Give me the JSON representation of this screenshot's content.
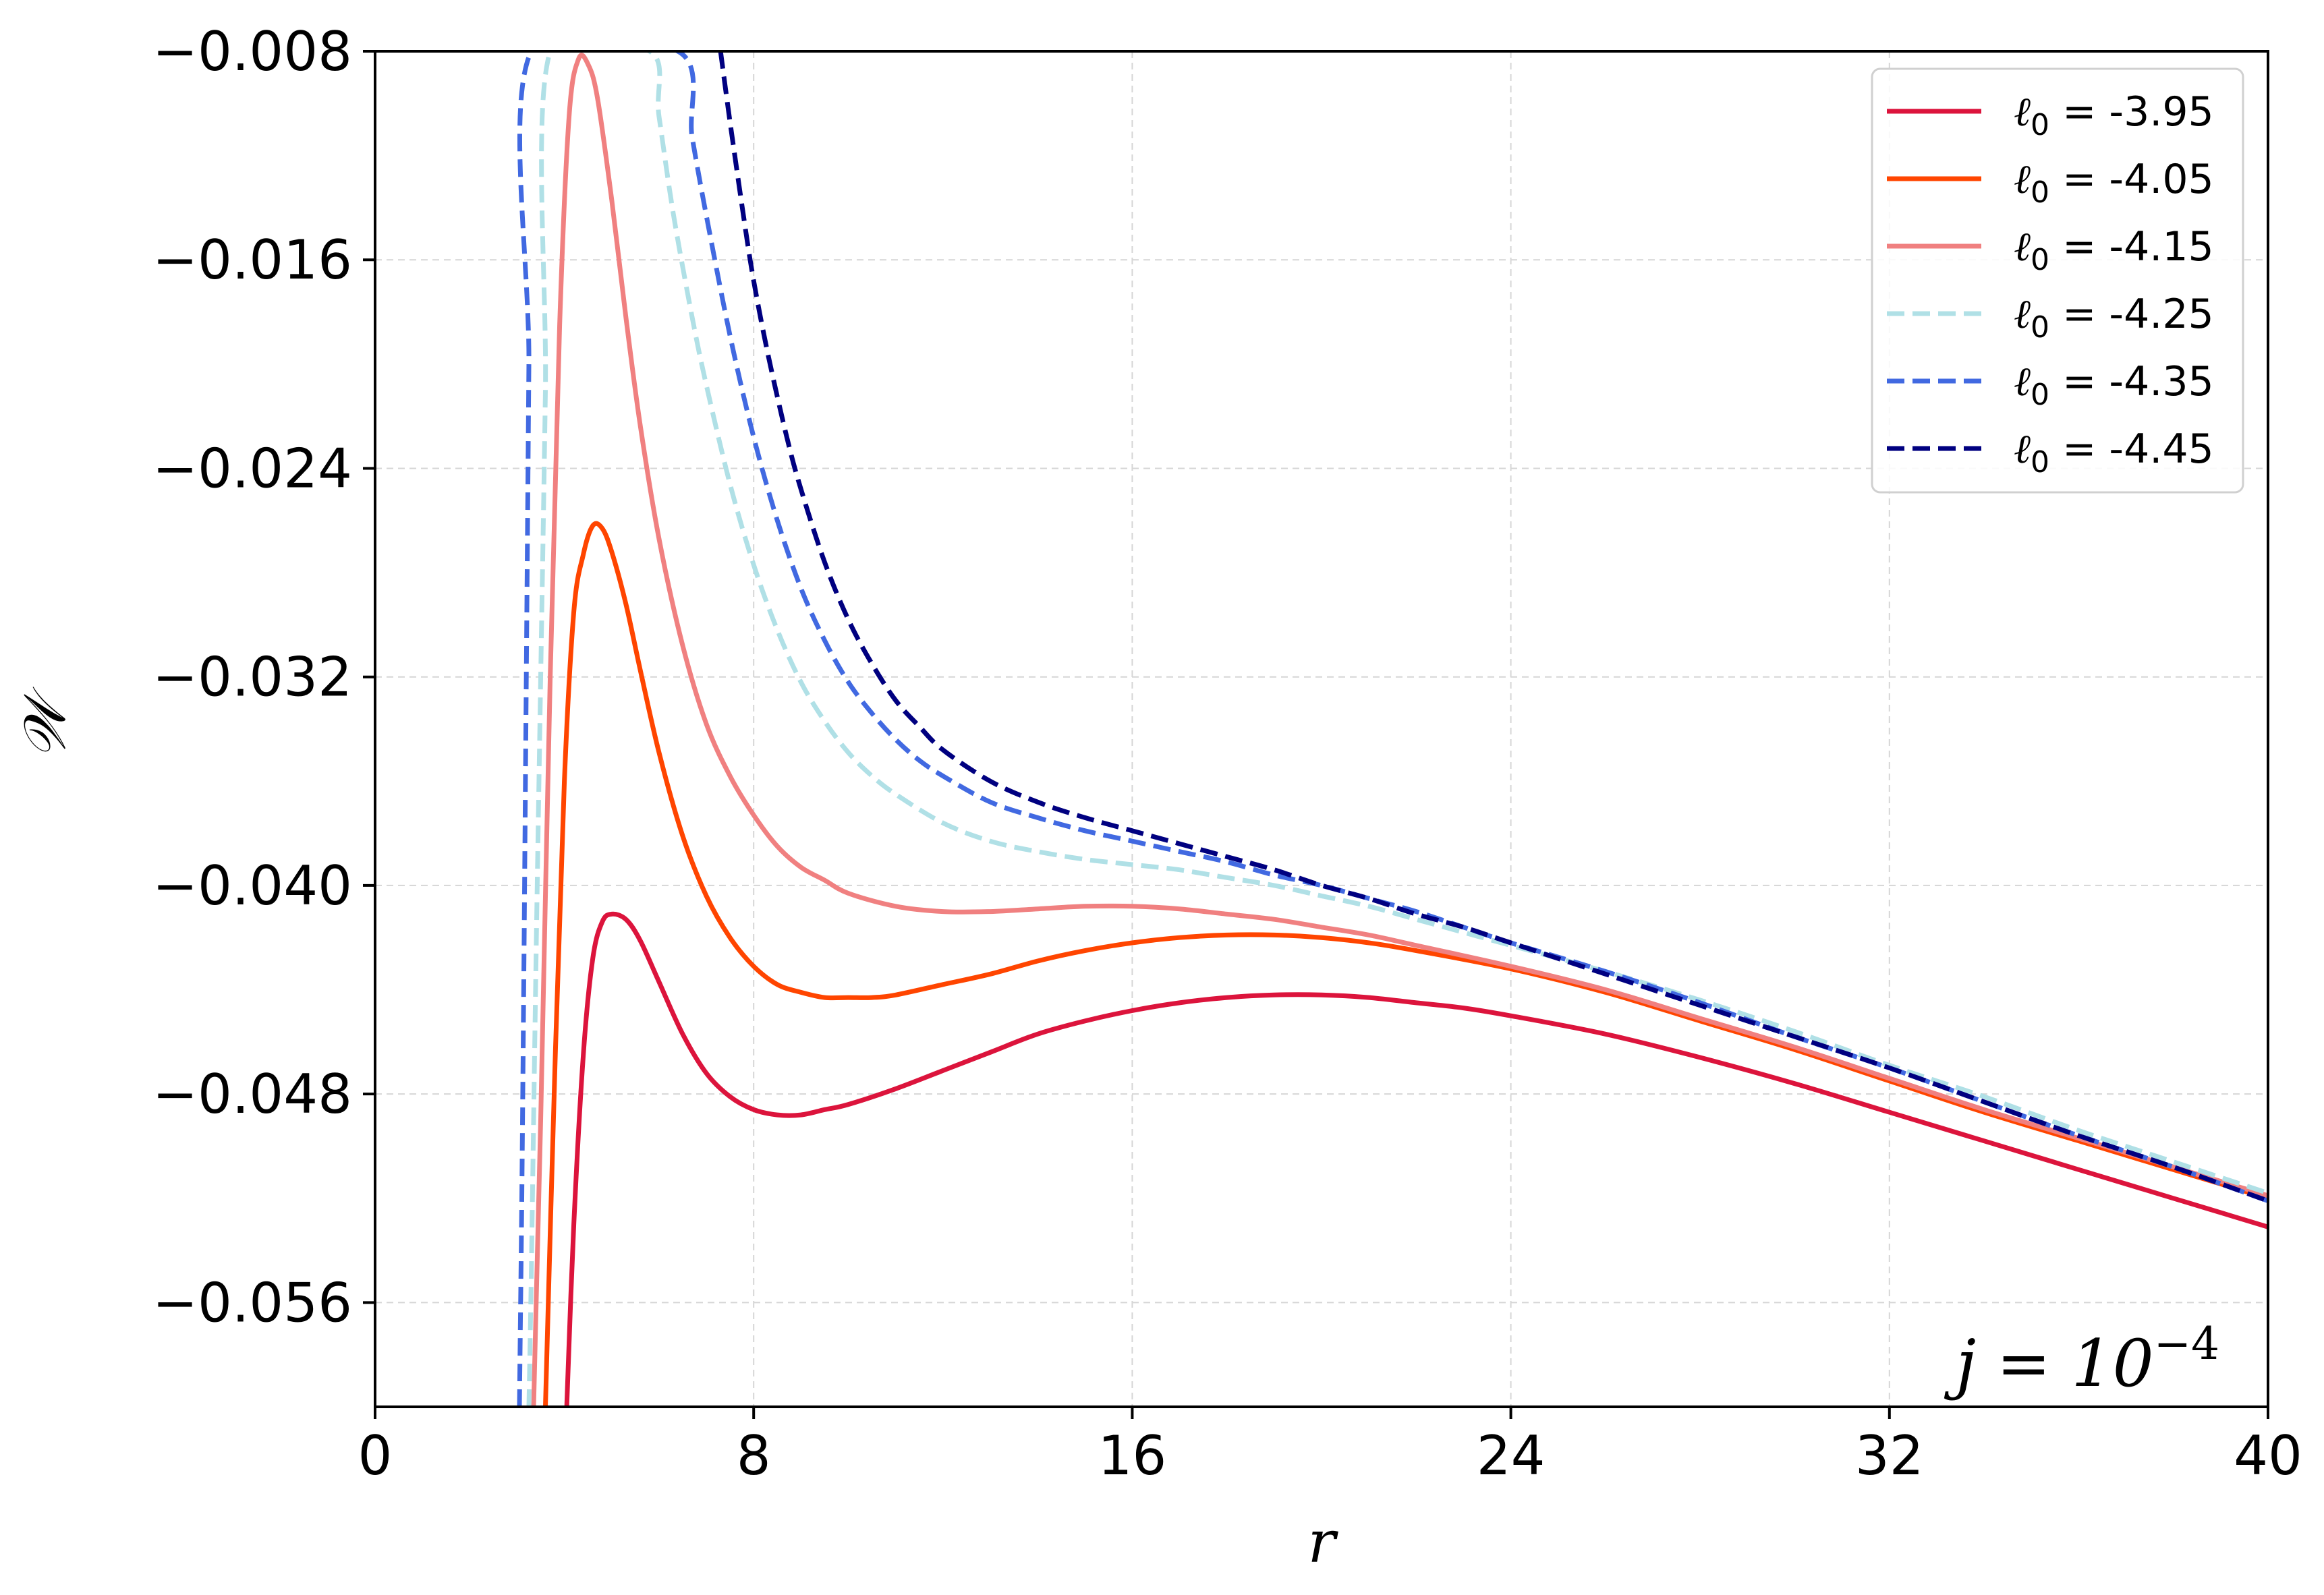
{
  "chart_data": {
    "type": "line",
    "title": "",
    "xlabel": "r",
    "ylabel": "𝒲",
    "xlim": [
      0,
      40
    ],
    "ylim": [
      -0.06,
      -0.008
    ],
    "xticks": [
      0,
      8,
      16,
      24,
      32,
      40
    ],
    "xtick_labels": [
      "0",
      "8",
      "16",
      "24",
      "32",
      "40"
    ],
    "yticks": [
      -0.008,
      -0.016,
      -0.024,
      -0.032,
      -0.04,
      -0.048,
      -0.056
    ],
    "ytick_labels": [
      "−0.008",
      "−0.016",
      "−0.024",
      "−0.032",
      "−0.040",
      "−0.048",
      "−0.056"
    ],
    "grid": true,
    "legend_position": "top-right",
    "annotation": {
      "base": "j = 10",
      "exponent": "−4"
    },
    "series": [
      {
        "name": "ℓ0 = -3.95",
        "legend_symbol": "ℓ",
        "legend_subscript": "0",
        "legend_value": " = -3.95",
        "color": "#dc143c",
        "dash": "solid",
        "x": [
          4.05,
          4.2,
          4.4,
          4.6,
          4.8,
          5.0,
          5.3,
          5.6,
          6.0,
          6.5,
          7.0,
          7.5,
          8.0,
          8.5,
          9.0,
          9.5,
          10.0,
          11.0,
          12.0,
          13.0,
          14.0,
          15.0,
          16.0,
          17.0,
          18.0,
          19.0,
          20.0,
          21.0,
          22.0,
          23.0,
          24.0,
          26.0,
          28.0,
          30.0,
          32.0,
          34.0,
          36.0,
          38.0,
          40.0
        ],
        "y": [
          -0.06,
          -0.053,
          -0.0465,
          -0.0428,
          -0.0414,
          -0.0411,
          -0.0413,
          -0.0421,
          -0.0437,
          -0.0457,
          -0.0472,
          -0.0481,
          -0.0486,
          -0.0488,
          -0.0488,
          -0.0486,
          -0.0484,
          -0.0478,
          -0.0471,
          -0.0464,
          -0.0457,
          -0.0452,
          -0.0448,
          -0.0445,
          -0.0443,
          -0.0442,
          -0.0442,
          -0.0443,
          -0.0445,
          -0.0447,
          -0.045,
          -0.0457,
          -0.0466,
          -0.0476,
          -0.0487,
          -0.0498,
          -0.0509,
          -0.052,
          -0.0531
        ]
      },
      {
        "name": "ℓ0 = -4.05",
        "legend_symbol": "ℓ",
        "legend_subscript": "0",
        "legend_value": " = -4.05",
        "color": "#ff4500",
        "dash": "solid",
        "x": [
          3.6,
          3.8,
          4.0,
          4.2,
          4.4,
          4.6,
          4.8,
          5.0,
          5.3,
          5.6,
          6.0,
          6.5,
          7.0,
          7.5,
          8.0,
          8.5,
          9.0,
          9.5,
          10.0,
          10.5,
          11.0,
          12.0,
          13.0,
          14.0,
          15.0,
          16.0,
          17.0,
          18.0,
          19.0,
          20.0,
          21.0,
          22.0,
          24.0,
          26.0,
          28.0,
          30.0,
          32.0,
          34.0,
          36.0,
          38.0,
          40.0
        ],
        "y": [
          -0.06,
          -0.047,
          -0.036,
          -0.0295,
          -0.0273,
          -0.0262,
          -0.0263,
          -0.0272,
          -0.0292,
          -0.0317,
          -0.0349,
          -0.0381,
          -0.0404,
          -0.042,
          -0.0431,
          -0.0438,
          -0.0441,
          -0.0443,
          -0.0443,
          -0.0443,
          -0.0442,
          -0.0438,
          -0.0434,
          -0.0429,
          -0.0425,
          -0.0422,
          -0.042,
          -0.0419,
          -0.0419,
          -0.042,
          -0.0422,
          -0.0425,
          -0.0432,
          -0.0441,
          -0.0452,
          -0.0463,
          -0.0475,
          -0.0487,
          -0.0498,
          -0.0509,
          -0.052
        ]
      },
      {
        "name": "ℓ0 = -4.15",
        "legend_symbol": "ℓ",
        "legend_subscript": "0",
        "legend_value": " = -4.15",
        "color": "#f08080",
        "dash": "solid",
        "x": [
          3.35,
          3.5,
          3.7,
          3.9,
          4.1,
          4.3,
          4.5,
          4.7,
          5.0,
          5.3,
          5.6,
          6.0,
          6.5,
          7.0,
          7.5,
          8.0,
          8.5,
          9.0,
          9.5,
          10.0,
          11.0,
          12.0,
          13.0,
          14.0,
          15.0,
          16.0,
          17.0,
          18.0,
          19.0,
          20.0,
          21.0,
          22.0,
          24.0,
          26.0,
          28.0,
          30.0,
          32.0,
          34.0,
          36.0,
          38.0,
          40.0
        ],
        "y": [
          -0.06,
          -0.049,
          -0.032,
          -0.0185,
          -0.0105,
          -0.0083,
          -0.0085,
          -0.0098,
          -0.0137,
          -0.0182,
          -0.0223,
          -0.0267,
          -0.0308,
          -0.0338,
          -0.0358,
          -0.0373,
          -0.0385,
          -0.0393,
          -0.0398,
          -0.0403,
          -0.0408,
          -0.041,
          -0.041,
          -0.0409,
          -0.0408,
          -0.0408,
          -0.0409,
          -0.0411,
          -0.0413,
          -0.0416,
          -0.0419,
          -0.0423,
          -0.0431,
          -0.044,
          -0.0451,
          -0.0462,
          -0.0474,
          -0.0486,
          -0.0497,
          -0.0508,
          -0.0519
        ]
      },
      {
        "name": "ℓ0 = -4.25",
        "legend_symbol": "ℓ",
        "legend_subscript": "0",
        "legend_value": " = -4.25",
        "color": "#b0e0e6",
        "dash": "dashed",
        "x": [
          3.25,
          3.3,
          3.4,
          3.5,
          3.6,
          3.7,
          5.8,
          6.0,
          6.3,
          6.7,
          7.0,
          7.5,
          8.0,
          8.5,
          9.0,
          9.5,
          10.0,
          10.5,
          11.0,
          12.0,
          13.0,
          14.0,
          15.0,
          16.0,
          17.0,
          18.0,
          19.0,
          20.0,
          21.0,
          22.0,
          23.0,
          24.0,
          26.0,
          28.0,
          30.0,
          32.0,
          34.0,
          36.0,
          38.0,
          40.0
        ],
        "y": [
          -0.06,
          -0.055,
          -0.043,
          -0.032,
          -0.021,
          -0.008,
          -0.008,
          -0.0105,
          -0.0142,
          -0.0182,
          -0.0208,
          -0.0246,
          -0.0277,
          -0.0302,
          -0.0322,
          -0.0337,
          -0.0349,
          -0.0358,
          -0.0365,
          -0.0376,
          -0.0383,
          -0.0387,
          -0.039,
          -0.0392,
          -0.0394,
          -0.0397,
          -0.04,
          -0.0404,
          -0.0408,
          -0.0413,
          -0.0418,
          -0.0423,
          -0.0433,
          -0.0444,
          -0.0456,
          -0.0469,
          -0.0481,
          -0.0494,
          -0.0506,
          -0.0518
        ]
      },
      {
        "name": "ℓ0 = -4.35",
        "legend_symbol": "ℓ",
        "legend_subscript": "0",
        "legend_value": " = -4.35",
        "color": "#4169e1",
        "dash": "dashed",
        "x": [
          3.05,
          3.1,
          3.15,
          3.2,
          3.25,
          3.3,
          6.4,
          6.7,
          7.0,
          7.5,
          8.0,
          8.5,
          9.0,
          9.5,
          10.0,
          10.5,
          11.0,
          11.5,
          12.0,
          13.0,
          14.0,
          15.0,
          16.0,
          17.0,
          18.0,
          19.0,
          20.0,
          21.0,
          22.0,
          23.0,
          24.0,
          26.0,
          28.0,
          30.0,
          32.0,
          34.0,
          36.0,
          38.0,
          40.0
        ],
        "y": [
          -0.06,
          -0.052,
          -0.042,
          -0.031,
          -0.02,
          -0.008,
          -0.008,
          -0.0113,
          -0.0143,
          -0.0189,
          -0.0228,
          -0.026,
          -0.0286,
          -0.0306,
          -0.0322,
          -0.0334,
          -0.0344,
          -0.0352,
          -0.0358,
          -0.0368,
          -0.0374,
          -0.0379,
          -0.0383,
          -0.0387,
          -0.0391,
          -0.0396,
          -0.04,
          -0.0405,
          -0.041,
          -0.0416,
          -0.0422,
          -0.0433,
          -0.0445,
          -0.0458,
          -0.047,
          -0.0483,
          -0.0496,
          -0.0508,
          -0.0521
        ]
      },
      {
        "name": "ℓ0 = -4.45",
        "legend_symbol": "ℓ",
        "legend_subscript": "0",
        "legend_value": " = -4.45",
        "color": "#000080",
        "dash": "dashed",
        "x": [
          7.3,
          7.5,
          7.8,
          8.0,
          8.3,
          8.7,
          9.0,
          9.5,
          10.0,
          10.5,
          11.0,
          11.5,
          12.0,
          13.0,
          14.0,
          15.0,
          16.0,
          17.0,
          18.0,
          19.0,
          20.0,
          21.0,
          22.0,
          23.0,
          24.0,
          26.0,
          28.0,
          30.0,
          32.0,
          34.0,
          36.0,
          38.0,
          40.0
        ],
        "y": [
          -0.008,
          -0.0107,
          -0.0145,
          -0.0168,
          -0.0196,
          -0.0228,
          -0.0248,
          -0.0276,
          -0.0298,
          -0.0315,
          -0.0329,
          -0.0339,
          -0.0348,
          -0.036,
          -0.0368,
          -0.0374,
          -0.0379,
          -0.0384,
          -0.0389,
          -0.0394,
          -0.04,
          -0.0405,
          -0.0411,
          -0.0416,
          -0.0422,
          -0.0434,
          -0.0446,
          -0.0458,
          -0.047,
          -0.0483,
          -0.0496,
          -0.0508,
          -0.0521
        ]
      }
    ]
  }
}
